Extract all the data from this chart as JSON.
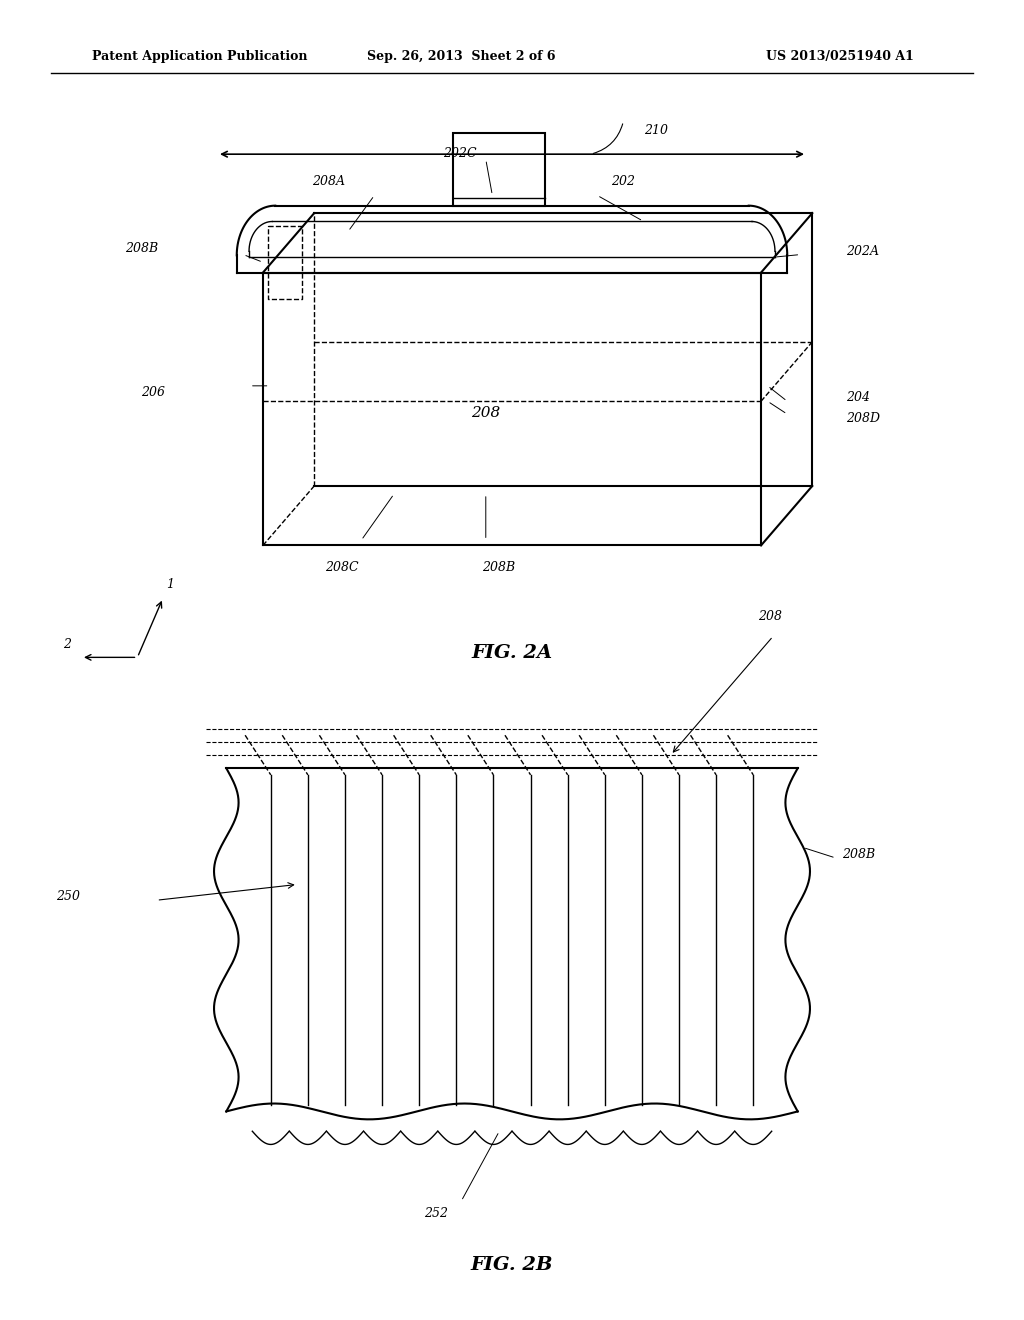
{
  "bg_color": "#ffffff",
  "header_left": "Patent Application Publication",
  "header_mid": "Sep. 26, 2013  Sheet 2 of 6",
  "header_right": "US 2013/0251940 A1",
  "fig2a_caption": "FIG. 2A",
  "fig2b_caption": "FIG. 2B"
}
